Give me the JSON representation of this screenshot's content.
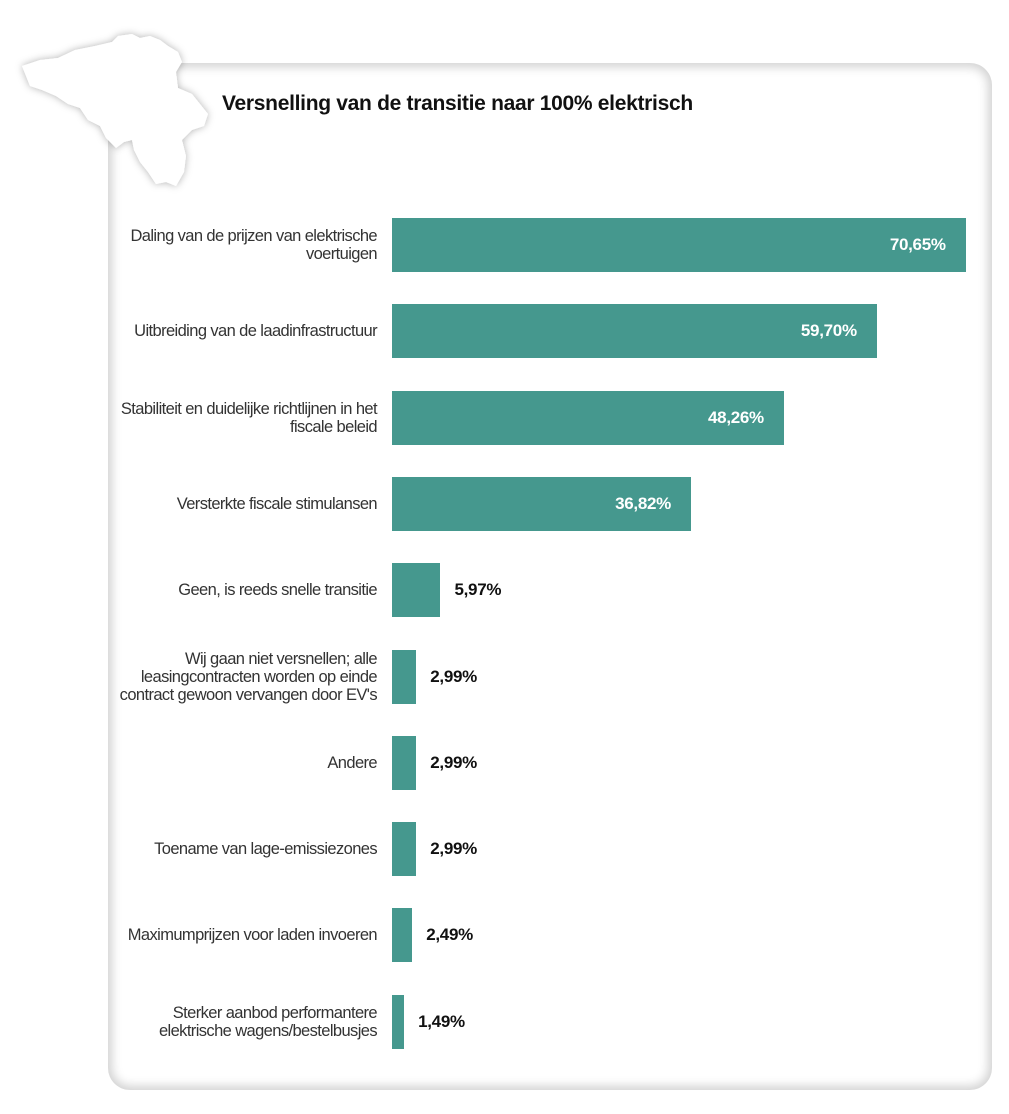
{
  "chart_data": {
    "type": "bar",
    "orientation": "horizontal",
    "title": "Versnelling van de transitie naar 100% elektrisch",
    "bar_color": "#45988e",
    "categories": [
      "Daling van de prijzen van elektrische voertuigen",
      "Uitbreiding van de laadinfrastructuur",
      "Stabiliteit en duidelijke richtlijnen in het fiscale beleid",
      "Versterkte fiscale stimulansen",
      "Geen, is reeds snelle transitie",
      "Wij gaan niet versnellen; alle leasingcontracten worden op einde contract gewoon vervangen door EV's",
      "Andere",
      "Toename van lage-emissiezones",
      "Maximumprijzen voor laden invoeren",
      "Sterker aanbod performantere elektrische wagens/bestelbusjes"
    ],
    "values": [
      70.65,
      59.7,
      48.26,
      36.82,
      5.97,
      2.99,
      2.99,
      2.99,
      2.49,
      1.49
    ],
    "value_labels": [
      "70,65%",
      "59,70%",
      "48,26%",
      "36,82%",
      "5,97%",
      "2,99%",
      "2,99%",
      "2,99%",
      "2,49%",
      "1,49%"
    ]
  },
  "decoration": {
    "map": "belgium-silhouette"
  }
}
